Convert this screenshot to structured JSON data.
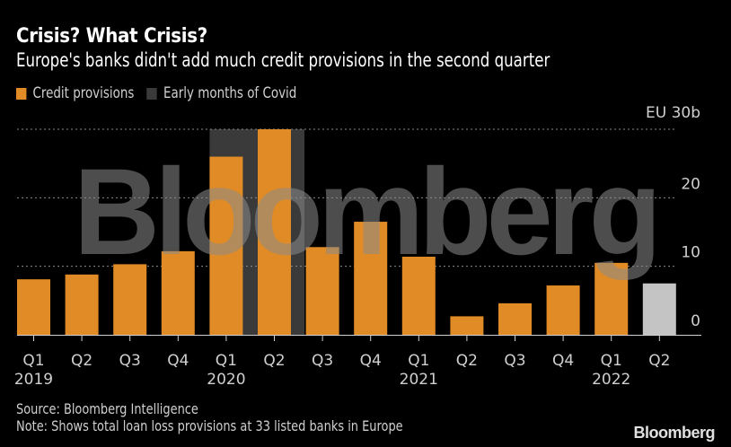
{
  "header": {
    "title": "Crisis? What Crisis?",
    "subtitle": "Europe's banks didn't add much credit provisions in the second quarter"
  },
  "legend": [
    {
      "label": "Credit provisions",
      "color": "#e08b25"
    },
    {
      "label": "Early months of Covid",
      "color": "#3a3a3a"
    }
  ],
  "footer": {
    "source": "Source: Bloomberg Intelligence",
    "note": "Note: Shows total loan loss provisions at 33 listed banks in Europe",
    "brand": "Bloomberg"
  },
  "watermark": "Bloomberg",
  "colors": {
    "bar": "#e08b25",
    "latest_bar": "#c4c4c4",
    "covid_shade": "#3a3a3a",
    "grid": "#8a8a8a",
    "axis": "#d0d0d0",
    "text": "#cfcfcf"
  },
  "chart_data": {
    "type": "bar",
    "title": "Crisis? What Crisis?",
    "subtitle": "Europe's banks didn't add much credit provisions in the second quarter",
    "unit_label": "EU 30b",
    "categories": [
      "Q1",
      "Q2",
      "Q3",
      "Q4",
      "Q1",
      "Q2",
      "Q3",
      "Q4",
      "Q1",
      "Q2",
      "Q3",
      "Q4",
      "Q1",
      "Q2"
    ],
    "year_labels": [
      "2019",
      "",
      "",
      "",
      "2020",
      "",
      "",
      "",
      "2021",
      "",
      "",
      "",
      "2022",
      ""
    ],
    "values": [
      8.1,
      8.8,
      10.3,
      12.2,
      26.0,
      30.0,
      12.8,
      16.5,
      11.4,
      2.7,
      4.6,
      7.2,
      10.5,
      7.5
    ],
    "highlight_last": true,
    "shaded_range": {
      "label": "Early months of Covid",
      "from_index": 4,
      "to_index": 5
    },
    "ylim": [
      0,
      30
    ],
    "yticks": [
      0,
      10,
      20,
      30
    ],
    "ytick_labels": [
      "0",
      "10",
      "20",
      "EU 30b"
    ],
    "xlabel": "",
    "ylabel": "",
    "grid": true,
    "y_axis_position": "right",
    "legend_position": "top-left"
  }
}
